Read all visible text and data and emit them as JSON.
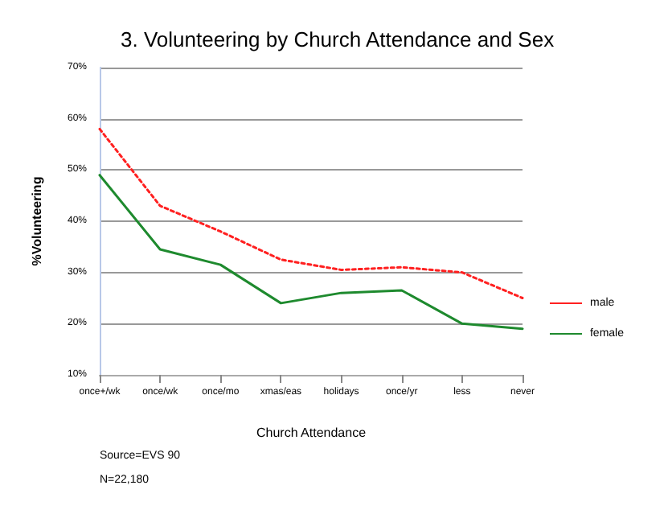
{
  "chart_data": {
    "type": "line",
    "title": "3. Volunteering by Church Attendance and Sex",
    "xlabel": "Church Attendance",
    "ylabel": "%Volunteering",
    "categories": [
      "once+/wk",
      "once/wk",
      "once/mo",
      "xmas/eas",
      "holidays",
      "once/yr",
      "less",
      "never"
    ],
    "series": [
      {
        "name": "male",
        "color": "#ff2020",
        "line_style": "dotted",
        "values": [
          58,
          43,
          38,
          32.5,
          30.5,
          31,
          30,
          25
        ]
      },
      {
        "name": "female",
        "color": "#1e8a2e",
        "line_style": "solid",
        "values": [
          49,
          34.5,
          31.5,
          24,
          26,
          26.5,
          20,
          19
        ]
      }
    ],
    "ylim": [
      10,
      70
    ],
    "yticks": [
      {
        "value": 10,
        "label": "10%"
      },
      {
        "value": 20,
        "label": "20%"
      },
      {
        "value": 30,
        "label": "30%"
      },
      {
        "value": 40,
        "label": "40%"
      },
      {
        "value": 50,
        "label": "50%"
      },
      {
        "value": 60,
        "label": "60%"
      },
      {
        "value": 70,
        "label": "70%"
      }
    ],
    "grid": "y",
    "legend": "right",
    "marker": "none",
    "annotations": [
      "Source=EVS 90",
      "N=22,180"
    ]
  }
}
